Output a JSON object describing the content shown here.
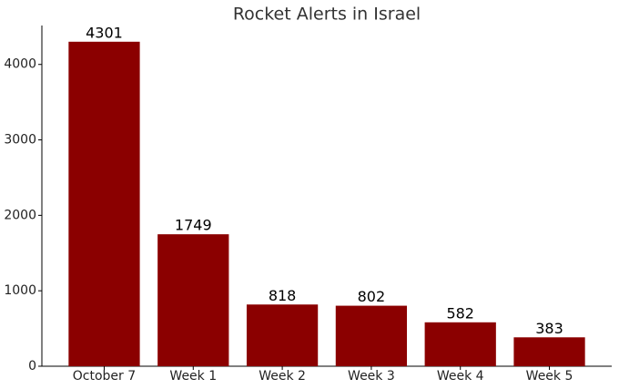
{
  "chart_data": {
    "type": "bar",
    "title": "Rocket Alerts in Israel",
    "categories": [
      "October 7",
      "Week 1",
      "Week 2",
      "Week 3",
      "Week 4",
      "Week 5"
    ],
    "values": [
      4301,
      1749,
      818,
      802,
      582,
      383
    ],
    "color": "#8b0000",
    "ylim": [
      0,
      4516
    ],
    "yticks": [
      0,
      1000,
      2000,
      3000,
      4000
    ],
    "grid": false
  }
}
